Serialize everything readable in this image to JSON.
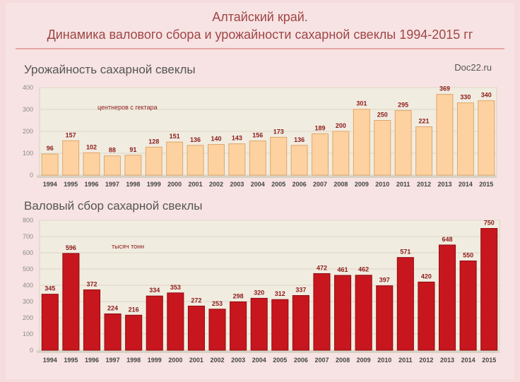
{
  "header": {
    "line1": "Алтайский край.",
    "line2": "Динамика валового сбора и урожайности сахарной свеклы  1994-2015 гг"
  },
  "source": "Doc22.ru",
  "colors": {
    "yield_bar": "#fdd2a0",
    "yield_edge": "#e1a56a",
    "harvest_bar": "#c8161e",
    "harvest_edge": "#8e0c10"
  },
  "chart_data": [
    {
      "type": "bar",
      "title": "Урожайность сахарной свеклы",
      "unit_label": "центнеров с гектара",
      "categories": [
        "1994",
        "1995",
        "1996",
        "1997",
        "1998",
        "1999",
        "2000",
        "2001",
        "2002",
        "2003",
        "2004",
        "2005",
        "2006",
        "2007",
        "2008",
        "2009",
        "2010",
        "2011",
        "2012",
        "2013",
        "2014",
        "2015"
      ],
      "values": [
        96,
        157,
        102,
        88,
        91,
        128,
        151,
        136,
        140,
        143,
        156,
        173,
        136,
        189,
        200,
        301,
        250,
        295,
        221,
        369,
        330,
        340
      ],
      "ylim": [
        0,
        400
      ],
      "yticks": [
        0,
        100,
        200,
        300,
        400
      ],
      "grid": true
    },
    {
      "type": "bar",
      "title": "Валовый сбор сахарной свеклы",
      "unit_label": "тысяч тонн",
      "categories": [
        "1994",
        "1995",
        "1996",
        "1997",
        "1998",
        "1999",
        "2000",
        "2001",
        "2002",
        "2003",
        "2004",
        "2005",
        "2006",
        "2007",
        "2008",
        "2009",
        "2010",
        "2011",
        "2012",
        "2013",
        "2014",
        "2015"
      ],
      "values": [
        345,
        596,
        372,
        224,
        216,
        334,
        353,
        272,
        253,
        298,
        320,
        312,
        337,
        472,
        461,
        462,
        397,
        571,
        420,
        648,
        550,
        750
      ],
      "ylim": [
        0,
        800
      ],
      "yticks": [
        0,
        100,
        200,
        300,
        400,
        500,
        600,
        700,
        800
      ],
      "grid": true
    }
  ]
}
